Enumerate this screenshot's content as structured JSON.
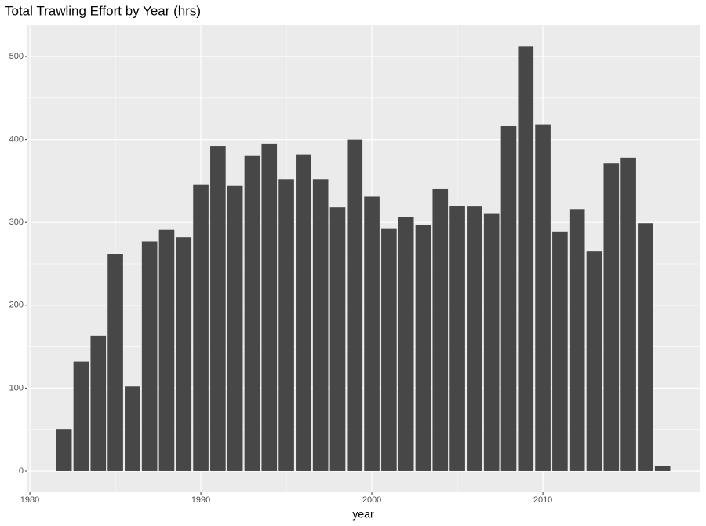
{
  "chart_data": {
    "type": "bar",
    "title": "Total Trawling Effort by Year (hrs)",
    "xlabel": "year",
    "x": [
      1982,
      1983,
      1984,
      1985,
      1986,
      1987,
      1988,
      1989,
      1990,
      1991,
      1992,
      1993,
      1994,
      1995,
      1996,
      1997,
      1998,
      1999,
      2000,
      2001,
      2002,
      2003,
      2004,
      2005,
      2006,
      2007,
      2008,
      2009,
      2010,
      2011,
      2012,
      2013,
      2014,
      2015,
      2016,
      2017
    ],
    "values": [
      50,
      132,
      163,
      262,
      102,
      277,
      291,
      282,
      345,
      392,
      344,
      380,
      395,
      352,
      382,
      352,
      318,
      400,
      331,
      292,
      306,
      297,
      340,
      320,
      319,
      311,
      416,
      512,
      418,
      289,
      316,
      265,
      371,
      378,
      299,
      6
    ],
    "color": "#474747",
    "xlim": [
      1979.86,
      2019.17
    ],
    "xticks": [
      1980,
      1990,
      2000,
      2010
    ],
    "ylim": [
      -25.6,
      537.9
    ],
    "yticks": [
      0,
      100,
      200,
      300,
      400,
      500
    ],
    "grid": true
  }
}
